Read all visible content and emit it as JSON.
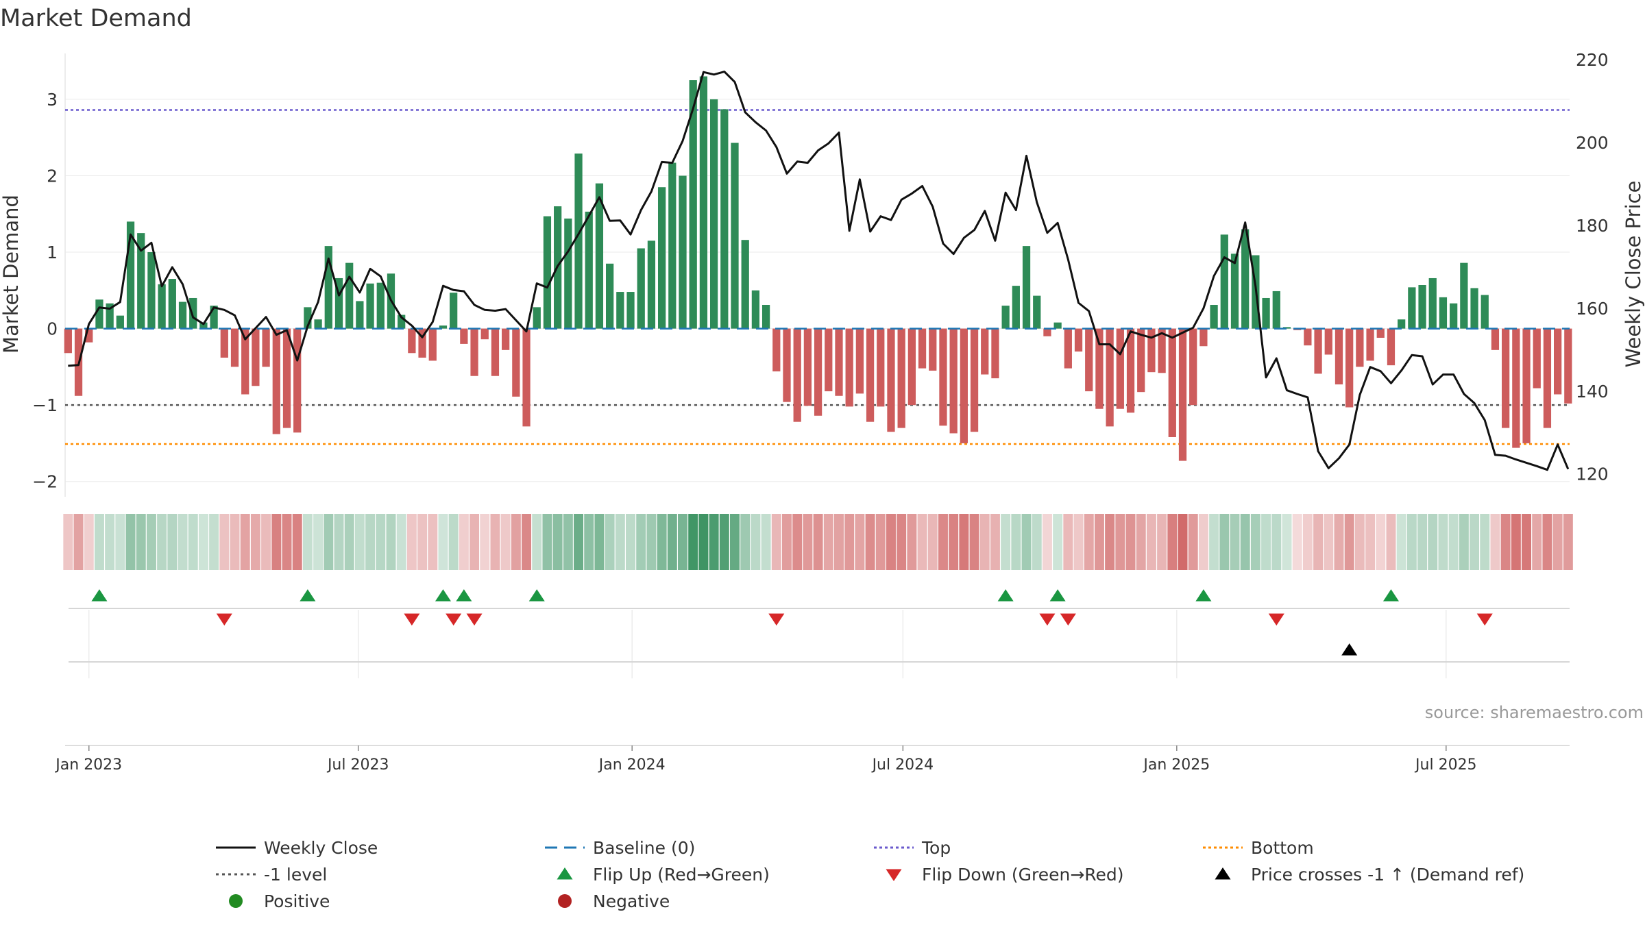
{
  "chart_data": {
    "type": "bar",
    "title": "Market Demand",
    "ylabel": "Market Demand",
    "y2label": "Weekly Close Price",
    "ylim": [
      -2.2,
      3.6
    ],
    "y2lim": [
      114.5,
      221.5
    ],
    "yticks": [
      -2,
      -1,
      0,
      1,
      2,
      3
    ],
    "y2ticks": [
      120,
      140,
      160,
      180,
      200,
      220
    ],
    "x_start": "2022-12-25",
    "x_step_days": 7,
    "xlim_days": [
      -2,
      1009
    ],
    "xticks": [
      {
        "label": "Jan 2023",
        "day": 14
      },
      {
        "label": "Jul 2023",
        "day": 195
      },
      {
        "label": "Jan 2024",
        "day": 379
      },
      {
        "label": "Jul 2024",
        "day": 561
      },
      {
        "label": "Jan 2025",
        "day": 745
      },
      {
        "label": "Jul 2025",
        "day": 926
      }
    ],
    "demand": [
      -0.32,
      -0.88,
      -0.18,
      0.38,
      0.33,
      0.17,
      1.4,
      1.25,
      1.0,
      0.58,
      0.65,
      0.35,
      0.4,
      0.08,
      0.3,
      -0.38,
      -0.5,
      -0.86,
      -0.75,
      -0.5,
      -1.38,
      -1.3,
      -1.36,
      0.28,
      0.12,
      1.08,
      0.66,
      0.86,
      0.36,
      0.59,
      0.6,
      0.72,
      0.18,
      -0.32,
      -0.38,
      -0.42,
      0.04,
      0.47,
      -0.2,
      -0.62,
      -0.14,
      -0.62,
      -0.28,
      -0.89,
      -1.28,
      0.28,
      1.47,
      1.6,
      1.44,
      2.29,
      1.53,
      1.9,
      0.85,
      0.48,
      0.48,
      1.05,
      1.15,
      1.85,
      2.17,
      2.0,
      3.25,
      3.3,
      3.0,
      2.87,
      2.43,
      1.16,
      0.5,
      0.31,
      -0.56,
      -0.96,
      -1.22,
      -1.01,
      -1.14,
      -0.82,
      -0.88,
      -1.02,
      -0.85,
      -1.22,
      -1.02,
      -1.35,
      -1.3,
      -1.0,
      -0.52,
      -0.55,
      -1.27,
      -1.37,
      -1.5,
      -1.35,
      -0.6,
      -0.65,
      0.3,
      0.56,
      1.08,
      0.43,
      -0.1,
      0.08,
      -0.52,
      -0.3,
      -0.82,
      -1.05,
      -1.28,
      -1.05,
      -1.1,
      -0.83,
      -0.57,
      -0.58,
      -1.42,
      -1.73,
      -1.0,
      -0.23,
      0.31,
      1.23,
      0.98,
      1.3,
      0.96,
      0.4,
      0.49,
      0.02,
      -0.02,
      -0.22,
      -0.59,
      -0.34,
      -0.73,
      -1.03,
      -0.5,
      -0.42,
      -0.12,
      -0.48,
      0.12,
      0.54,
      0.57,
      0.66,
      0.41,
      0.33,
      0.86,
      0.53,
      0.44,
      -0.28,
      -1.3,
      -1.56,
      -1.5,
      -0.78,
      -1.3,
      -0.86,
      -0.98
    ],
    "close": [
      146.1,
      146.3,
      156.2,
      160.2,
      159.9,
      161.5,
      177.8,
      173.9,
      175.8,
      165.3,
      169.9,
      165.8,
      157.8,
      156.2,
      160.2,
      159.6,
      158.3,
      152.5,
      155.2,
      157.9,
      153.6,
      154.7,
      147.4,
      155.7,
      161.5,
      172.0,
      163.1,
      167.6,
      163.8,
      169.5,
      167.7,
      161.9,
      157.8,
      155.8,
      153.0,
      156.7,
      165.4,
      164.4,
      164.1,
      160.8,
      159.6,
      159.4,
      159.8,
      157.1,
      154.4,
      166.0,
      165.0,
      170.2,
      173.7,
      177.9,
      182.3,
      186.8,
      181.1,
      181.2,
      177.8,
      183.7,
      188.2,
      195.3,
      195.1,
      200.4,
      208.2,
      217.0,
      216.4,
      217.1,
      214.6,
      207.3,
      204.9,
      202.9,
      198.9,
      192.5,
      195.4,
      195.1,
      198.1,
      199.8,
      202.4,
      178.7,
      191.1,
      178.5,
      182.2,
      181.3,
      186.2,
      187.7,
      189.5,
      184.5,
      175.6,
      173.1,
      177.0,
      178.9,
      183.5,
      176.3,
      187.9,
      183.7,
      196.8,
      185.6,
      178.2,
      180.6,
      171.8,
      161.3,
      159.3,
      151.3,
      151.3,
      148.9,
      154.4,
      153.6,
      152.9,
      154.0,
      152.9,
      154.1,
      155.3,
      160.0,
      167.8,
      172.3,
      170.9,
      180.7,
      165.2,
      143.3,
      147.9,
      140.2,
      139.3,
      138.5,
      125.5,
      121.4,
      123.8,
      127.1,
      139.1,
      145.8,
      144.8,
      141.9,
      145.0,
      148.7,
      148.4,
      141.6,
      144.0,
      144.0,
      139.3,
      137.1,
      133.0,
      124.6,
      124.4,
      123.5,
      122.7,
      121.9,
      121.0,
      127.1,
      121.2
    ],
    "levels": {
      "baseline": 0,
      "top": 2.86,
      "minus_one": -1,
      "bottom": -1.51
    },
    "flip_up_weeks": [
      3,
      23,
      36,
      38,
      45,
      90,
      95,
      109,
      127
    ],
    "flip_down_weeks": [
      15,
      33,
      37,
      39,
      68,
      94,
      96,
      116,
      136
    ],
    "price_cross_weeks": [
      123
    ],
    "source": "source: sharemaestro.com",
    "legend": {
      "columns": [
        [
          {
            "label": "Weekly Close",
            "marker": "solid-line"
          },
          {
            "label": "-1 level",
            "marker": "dotted-gray"
          },
          {
            "label": "Positive",
            "marker": "green-dot"
          }
        ],
        [
          {
            "label": "Baseline (0)",
            "marker": "dashed-blue"
          },
          {
            "label": "Flip Up (Red→Green)",
            "marker": "green-up"
          },
          {
            "label": "Negative",
            "marker": "red-dot"
          }
        ],
        [
          {
            "label": "Top",
            "marker": "dotted-purple"
          },
          {
            "label": "Flip Down (Green→Red)",
            "marker": "red-down"
          }
        ],
        [
          {
            "label": "Bottom",
            "marker": "dotted-orange"
          },
          {
            "label": "Price crosses -1 ↑ (Demand ref)",
            "marker": "black-up"
          }
        ]
      ]
    },
    "colors": {
      "pos": "#2e8b57",
      "neg": "#cd5c5c",
      "close": "#111111",
      "baseline": "#1f77b4",
      "top": "#6a5acd",
      "minus_one": "#555555",
      "bottom": "#ff8c00",
      "flip_up": "#1a9641",
      "flip_down": "#d62728",
      "cross": "#000000",
      "legend_pos": "#228b22",
      "legend_neg": "#b22222"
    }
  }
}
